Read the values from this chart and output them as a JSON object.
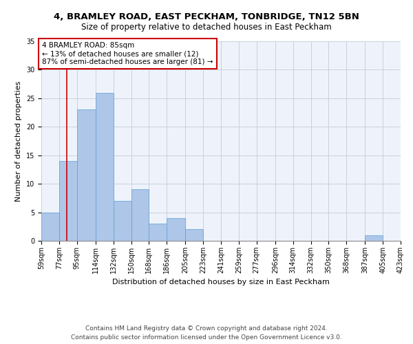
{
  "title": "4, BRAMLEY ROAD, EAST PECKHAM, TONBRIDGE, TN12 5BN",
  "subtitle": "Size of property relative to detached houses in East Peckham",
  "xlabel": "Distribution of detached houses by size in East Peckham",
  "ylabel": "Number of detached properties",
  "bar_color": "#aec6e8",
  "bar_edge_color": "#5a9fd4",
  "bg_color": "#eef3fb",
  "grid_color": "#c8d0dc",
  "vline_color": "#cc0000",
  "vline_x": 85,
  "annotation_text": "4 BRAMLEY ROAD: 85sqm\n← 13% of detached houses are smaller (12)\n87% of semi-detached houses are larger (81) →",
  "annotation_box_color": "#ffffff",
  "annotation_border_color": "#cc0000",
  "bins": [
    59,
    77,
    95,
    114,
    132,
    150,
    168,
    186,
    205,
    223,
    241,
    259,
    277,
    296,
    314,
    332,
    350,
    368,
    387,
    405,
    423
  ],
  "counts": [
    5,
    14,
    23,
    26,
    7,
    9,
    3,
    4,
    2,
    0,
    0,
    0,
    0,
    0,
    0,
    0,
    0,
    0,
    1,
    0
  ],
  "tick_labels": [
    "59sqm",
    "77sqm",
    "95sqm",
    "114sqm",
    "132sqm",
    "150sqm",
    "168sqm",
    "186sqm",
    "205sqm",
    "223sqm",
    "241sqm",
    "259sqm",
    "277sqm",
    "296sqm",
    "314sqm",
    "332sqm",
    "350sqm",
    "368sqm",
    "387sqm",
    "405sqm",
    "423sqm"
  ],
  "ylim": [
    0,
    35
  ],
  "yticks": [
    0,
    5,
    10,
    15,
    20,
    25,
    30,
    35
  ],
  "footer": "Contains HM Land Registry data © Crown copyright and database right 2024.\nContains public sector information licensed under the Open Government Licence v3.0.",
  "title_fontsize": 9.5,
  "subtitle_fontsize": 8.5,
  "xlabel_fontsize": 8,
  "ylabel_fontsize": 8,
  "tick_fontsize": 7,
  "footer_fontsize": 6.5,
  "annot_fontsize": 7.5
}
